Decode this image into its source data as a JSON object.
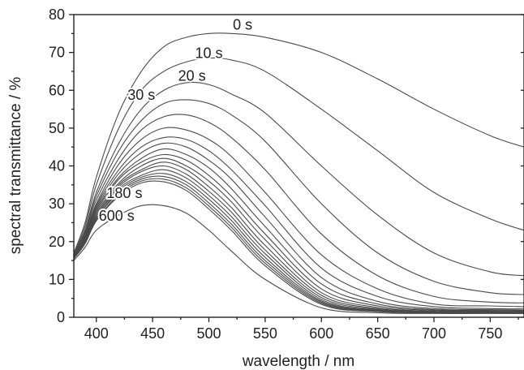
{
  "chart_data": {
    "type": "line",
    "xlabel": "wavelength / nm",
    "ylabel": "spectral transmittance / %",
    "xlim": [
      380,
      780
    ],
    "ylim": [
      0,
      80
    ],
    "x_ticks": [
      400,
      450,
      500,
      550,
      600,
      650,
      700,
      750
    ],
    "y_ticks": [
      0,
      10,
      20,
      30,
      40,
      50,
      60,
      70,
      80
    ],
    "grid": false,
    "line_color": "#4a4a4a",
    "curve_labels": [
      {
        "text": "0 s",
        "x": 530,
        "y": 76
      },
      {
        "text": "10 s",
        "x": 500,
        "y": 68.5
      },
      {
        "text": "20 s",
        "x": 485,
        "y": 62.5
      },
      {
        "text": "30 s",
        "x": 440,
        "y": 57.5
      },
      {
        "text": "180 s",
        "x": 425,
        "y": 31.5
      },
      {
        "text": "600 s",
        "x": 418,
        "y": 25.5
      }
    ],
    "series": [
      {
        "name": "0 s",
        "x": [
          380,
          390,
          400,
          420,
          440,
          460,
          480,
          500,
          520,
          550,
          600,
          650,
          700,
          750,
          780
        ],
        "y": [
          17,
          25,
          37,
          54,
          65,
          71.5,
          74,
          75,
          75,
          74,
          70,
          63,
          55,
          48,
          45
        ]
      },
      {
        "name": "10 s",
        "x": [
          380,
          390,
          400,
          420,
          440,
          460,
          480,
          500,
          520,
          550,
          600,
          650,
          700,
          750,
          780
        ],
        "y": [
          16.5,
          24,
          35,
          50,
          60,
          65,
          67.5,
          68.5,
          68,
          65,
          55,
          44,
          33,
          26,
          23
        ]
      },
      {
        "name": "20 s",
        "x": [
          380,
          390,
          400,
          420,
          440,
          460,
          480,
          500,
          520,
          550,
          600,
          650,
          700,
          750,
          780
        ],
        "y": [
          16.5,
          23,
          33,
          46,
          55,
          60,
          62,
          61.5,
          59,
          54,
          40,
          27,
          17,
          12,
          11
        ]
      },
      {
        "name": "30 s",
        "x": [
          380,
          390,
          400,
          420,
          440,
          460,
          480,
          500,
          520,
          550,
          600,
          650,
          700,
          750,
          780
        ],
        "y": [
          16,
          23,
          32,
          44,
          52,
          56.5,
          57.5,
          56.5,
          53.5,
          46.5,
          30,
          17,
          9.5,
          6.5,
          6
        ]
      },
      {
        "name": "",
        "x": [
          380,
          390,
          400,
          420,
          440,
          460,
          480,
          500,
          520,
          550,
          600,
          650,
          700,
          750,
          780
        ],
        "y": [
          16,
          22.5,
          31,
          42,
          49.5,
          53,
          53.5,
          51.5,
          47.5,
          39,
          22,
          11,
          5.5,
          4,
          3.8
        ]
      },
      {
        "name": "",
        "x": [
          380,
          390,
          400,
          420,
          440,
          460,
          480,
          500,
          520,
          550,
          600,
          650,
          700,
          750,
          780
        ],
        "y": [
          16,
          22,
          30,
          40.5,
          47,
          50,
          49.5,
          47,
          42.5,
          33,
          16.5,
          7.5,
          3.5,
          3,
          2.8
        ]
      },
      {
        "name": "",
        "x": [
          380,
          390,
          400,
          420,
          440,
          460,
          480,
          500,
          520,
          550,
          600,
          650,
          700,
          750,
          780
        ],
        "y": [
          16,
          21.5,
          29.5,
          39,
          45,
          47.5,
          47,
          44,
          39,
          29.5,
          13,
          5.5,
          2.8,
          2.3,
          2.2
        ]
      },
      {
        "name": "",
        "x": [
          380,
          390,
          400,
          420,
          440,
          460,
          480,
          500,
          520,
          550,
          600,
          650,
          700,
          750,
          780
        ],
        "y": [
          15.5,
          21.5,
          29,
          38,
          43.5,
          46,
          45,
          41.5,
          36.5,
          26.5,
          10.5,
          4.2,
          2.3,
          2,
          1.9
        ]
      },
      {
        "name": "",
        "x": [
          380,
          390,
          400,
          420,
          440,
          460,
          480,
          500,
          520,
          550,
          600,
          650,
          700,
          750,
          780
        ],
        "y": [
          15.5,
          21,
          28.5,
          37,
          42,
          44.5,
          43,
          39.5,
          34,
          24,
          8.8,
          3.5,
          2,
          1.8,
          1.7
        ]
      },
      {
        "name": "",
        "x": [
          380,
          390,
          400,
          420,
          440,
          460,
          480,
          500,
          520,
          550,
          600,
          650,
          700,
          750,
          780
        ],
        "y": [
          15.5,
          21,
          28,
          36.5,
          41,
          43,
          41.5,
          37.5,
          32,
          22,
          7.5,
          3,
          1.8,
          1.6,
          1.5
        ]
      },
      {
        "name": "",
        "x": [
          380,
          390,
          400,
          420,
          440,
          460,
          480,
          500,
          520,
          550,
          600,
          650,
          700,
          750,
          780
        ],
        "y": [
          15.5,
          20.5,
          27.5,
          35.5,
          40,
          42,
          40,
          36,
          30.5,
          20.5,
          6.5,
          2.6,
          1.6,
          1.5,
          1.4
        ]
      },
      {
        "name": "",
        "x": [
          380,
          390,
          400,
          420,
          440,
          460,
          480,
          500,
          520,
          550,
          600,
          650,
          700,
          750,
          780
        ],
        "y": [
          15.5,
          20.5,
          27,
          35,
          39,
          41,
          39,
          34.5,
          29,
          19,
          5.8,
          2.3,
          1.5,
          1.4,
          1.3
        ]
      },
      {
        "name": "",
        "x": [
          380,
          390,
          400,
          420,
          440,
          460,
          480,
          500,
          520,
          550,
          600,
          650,
          700,
          750,
          780
        ],
        "y": [
          15.5,
          20,
          26.5,
          34.5,
          38.5,
          40,
          37.8,
          33.3,
          27.8,
          17.8,
          5.2,
          2.1,
          1.4,
          1.3,
          1.25
        ]
      },
      {
        "name": "",
        "x": [
          380,
          390,
          400,
          420,
          440,
          460,
          480,
          500,
          520,
          550,
          600,
          650,
          700,
          750,
          780
        ],
        "y": [
          15.5,
          20,
          26.5,
          34,
          37.5,
          39,
          36.8,
          32.2,
          26.6,
          16.8,
          4.7,
          1.9,
          1.3,
          1.25,
          1.2
        ]
      },
      {
        "name": "",
        "x": [
          380,
          390,
          400,
          420,
          440,
          460,
          480,
          500,
          520,
          550,
          600,
          650,
          700,
          750,
          780
        ],
        "y": [
          15.5,
          20,
          26,
          33.5,
          37,
          38,
          35.8,
          31.2,
          25.6,
          15.8,
          4.3,
          1.8,
          1.25,
          1.2,
          1.15
        ]
      },
      {
        "name": "",
        "x": [
          380,
          390,
          400,
          420,
          440,
          460,
          480,
          500,
          520,
          550,
          600,
          650,
          700,
          750,
          780
        ],
        "y": [
          15.5,
          19.5,
          26,
          33,
          36.5,
          37.2,
          35,
          30.2,
          24.6,
          15,
          4,
          1.7,
          1.2,
          1.15,
          1.1
        ]
      },
      {
        "name": "",
        "x": [
          380,
          390,
          400,
          420,
          440,
          460,
          480,
          500,
          520,
          550,
          600,
          650,
          700,
          750,
          780
        ],
        "y": [
          15.5,
          19.5,
          25.5,
          32.5,
          36,
          36.5,
          34.2,
          29.4,
          23.8,
          14.3,
          3.7,
          1.6,
          1.15,
          1.1,
          1.05
        ]
      },
      {
        "name": "180 s",
        "x": [
          380,
          390,
          400,
          420,
          440,
          460,
          480,
          500,
          520,
          550,
          600,
          650,
          700,
          750,
          780
        ],
        "y": [
          15.5,
          19.5,
          25.5,
          32,
          35.5,
          35.8,
          33.5,
          28.6,
          23,
          13.6,
          3.4,
          1.5,
          1.1,
          1.05,
          1
        ]
      },
      {
        "name": "600 s",
        "x": [
          380,
          390,
          400,
          420,
          440,
          460,
          480,
          500,
          520,
          550,
          600,
          650,
          700,
          750,
          780
        ],
        "y": [
          15,
          18.5,
          23,
          27,
          29.5,
          29.5,
          27.5,
          23,
          17.5,
          10,
          2.5,
          1.2,
          1,
          1,
          1
        ]
      }
    ]
  }
}
